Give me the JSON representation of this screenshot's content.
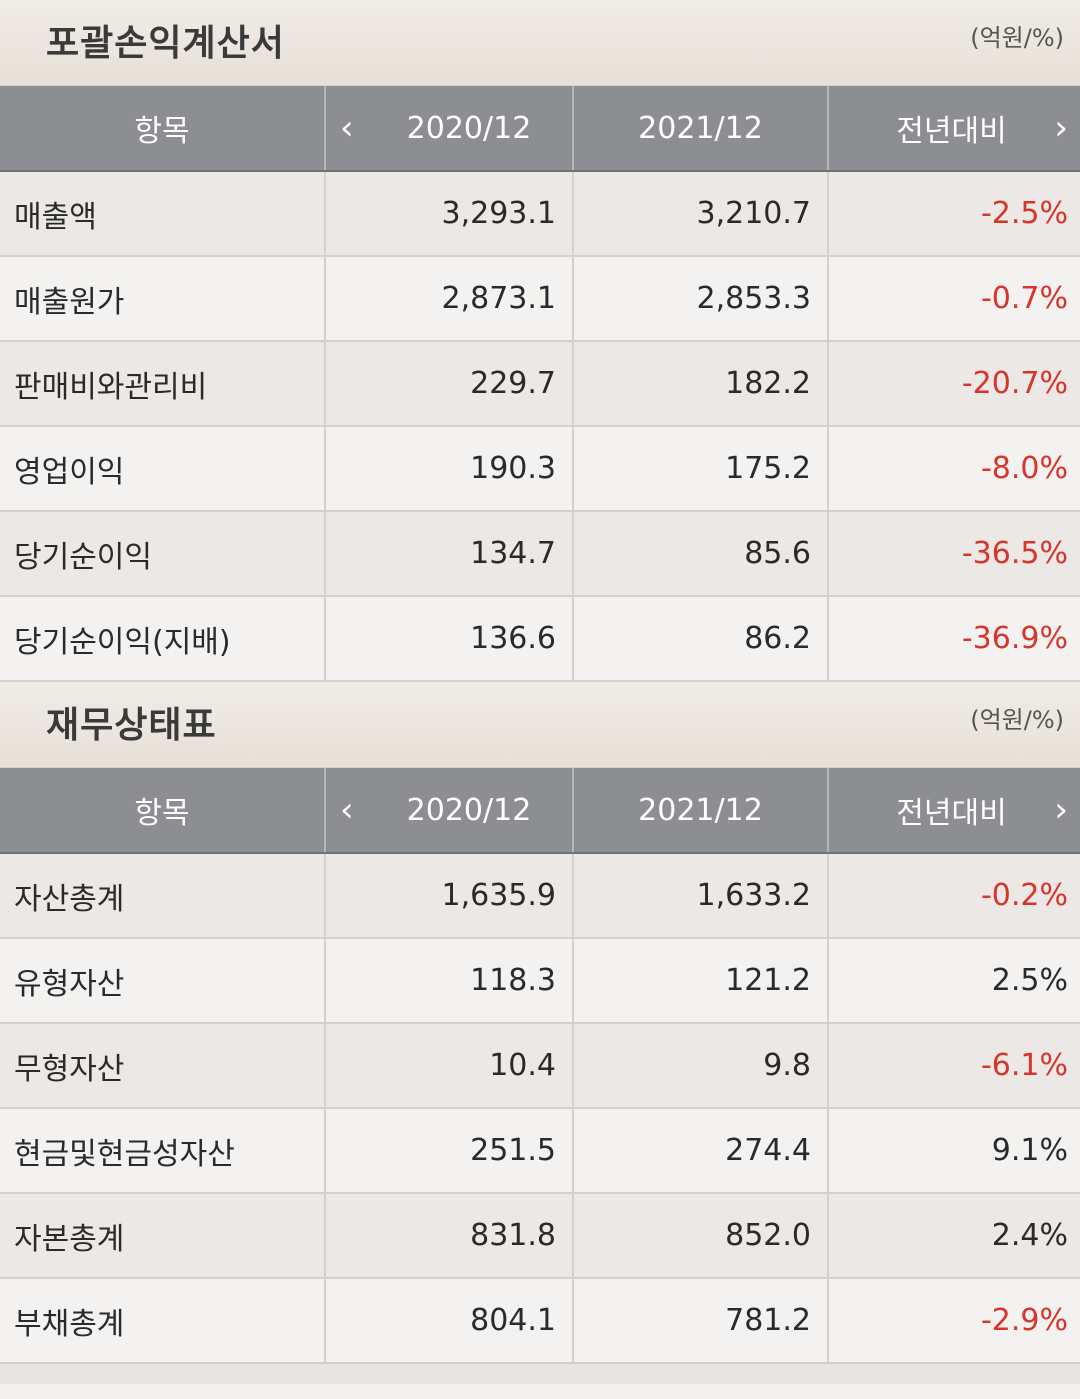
{
  "income": {
    "title": "포괄손익계산서",
    "unit": "(억원/%)",
    "headers": {
      "item": "항목",
      "col1": "2020/12",
      "col2": "2021/12",
      "col3": "전년대비"
    },
    "rows": [
      {
        "item": "매출액",
        "v2020": "3,293.1",
        "v2021": "3,210.7",
        "yoy": "-2.5%"
      },
      {
        "item": "매출원가",
        "v2020": "2,873.1",
        "v2021": "2,853.3",
        "yoy": "-0.7%"
      },
      {
        "item": "판매비와관리비",
        "v2020": "229.7",
        "v2021": "182.2",
        "yoy": "-20.7%"
      },
      {
        "item": "영업이익",
        "v2020": "190.3",
        "v2021": "175.2",
        "yoy": "-8.0%"
      },
      {
        "item": "당기순이익",
        "v2020": "134.7",
        "v2021": "85.6",
        "yoy": "-36.5%"
      },
      {
        "item": "당기순이익(지배)",
        "v2020": "136.6",
        "v2021": "86.2",
        "yoy": "-36.9%"
      }
    ]
  },
  "balance": {
    "title": "재무상태표",
    "unit": "(억원/%)",
    "headers": {
      "item": "항목",
      "col1": "2020/12",
      "col2": "2021/12",
      "col3": "전년대비"
    },
    "rows": [
      {
        "item": "자산총계",
        "v2020": "1,635.9",
        "v2021": "1,633.2",
        "yoy": "-0.2%"
      },
      {
        "item": "유형자산",
        "v2020": "118.3",
        "v2021": "121.2",
        "yoy": "2.5%"
      },
      {
        "item": "무형자산",
        "v2020": "10.4",
        "v2021": "9.8",
        "yoy": "-6.1%"
      },
      {
        "item": "현금및현금성자산",
        "v2020": "251.5",
        "v2021": "274.4",
        "yoy": "9.1%"
      },
      {
        "item": "자본총계",
        "v2020": "831.8",
        "v2021": "852.0",
        "yoy": "2.4%"
      },
      {
        "item": "부채총계",
        "v2020": "804.1",
        "v2021": "781.2",
        "yoy": "-2.9%"
      }
    ]
  },
  "colors": {
    "negative": "#d8342c",
    "header_bg": "#8c8e92"
  },
  "icons": {
    "prev": "chevron-left-icon",
    "next": "chevron-right-icon"
  }
}
